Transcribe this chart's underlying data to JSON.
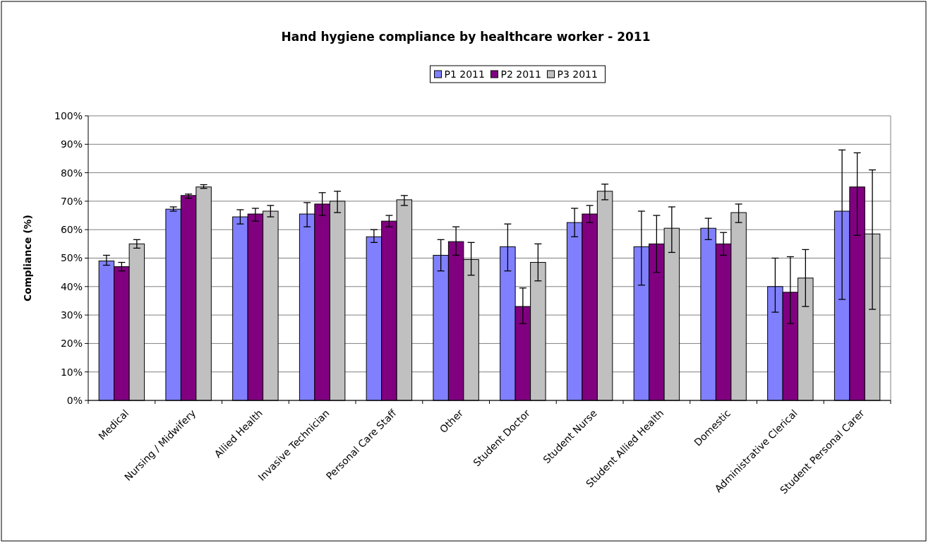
{
  "chart_data": {
    "type": "bar",
    "title": "Hand hygiene compliance by healthcare worker - 2011",
    "ylabel": "Compliance (%)",
    "categories": [
      "Medical",
      "Nursing / Midwifery",
      "Allied Health",
      "Invasive Technician",
      "Personal Care Staff",
      "Other",
      "Student Doctor",
      "Student Nurse",
      "Student Allied Health",
      "Domestic",
      "Administrative Clerical",
      "Student Personal Carer"
    ],
    "series": [
      {
        "name": "P1 2011",
        "color": "#8080ff",
        "values": [
          49,
          67.2,
          64.5,
          65.5,
          57.5,
          51,
          54,
          62.5,
          54,
          60.5,
          40,
          66.5
        ],
        "errors": [
          [
            47.5,
            51
          ],
          [
            66.5,
            68
          ],
          [
            62,
            67
          ],
          [
            61,
            69.5
          ],
          [
            55.5,
            60
          ],
          [
            45.5,
            56.5
          ],
          [
            45.5,
            62
          ],
          [
            57.5,
            67.5
          ],
          [
            40.5,
            66.5
          ],
          [
            56.5,
            64
          ],
          [
            31,
            50
          ],
          [
            35.5,
            88
          ]
        ]
      },
      {
        "name": "P2 2011",
        "color": "#800080",
        "values": [
          47,
          72,
          65.5,
          69,
          63,
          55.8,
          33,
          65.5,
          55,
          55,
          38,
          75
        ],
        "errors": [
          [
            45.5,
            48.5
          ],
          [
            71,
            72.5
          ],
          [
            63,
            67.5
          ],
          [
            65,
            73
          ],
          [
            61,
            65
          ],
          [
            51,
            61
          ],
          [
            27,
            39.5
          ],
          [
            62.5,
            68.5
          ],
          [
            45,
            65
          ],
          [
            51,
            59
          ],
          [
            27,
            50.5
          ],
          [
            58,
            87
          ]
        ]
      },
      {
        "name": "P3 2011",
        "color": "#c0c0c0",
        "values": [
          55,
          75,
          66.5,
          70,
          70.5,
          49.5,
          48.5,
          73.5,
          60.5,
          66,
          43,
          58.5
        ],
        "errors": [
          [
            53.5,
            56.5
          ],
          [
            74.5,
            75.8
          ],
          [
            64.5,
            68.5
          ],
          [
            66,
            73.5
          ],
          [
            68.5,
            72
          ],
          [
            44,
            55.5
          ],
          [
            42,
            55
          ],
          [
            70.5,
            76
          ],
          [
            52,
            68
          ],
          [
            62.5,
            69
          ],
          [
            33,
            53
          ],
          [
            32,
            81
          ]
        ]
      }
    ],
    "ylim": [
      0,
      100
    ],
    "yticks": [
      {
        "value": 0,
        "label": "0%"
      },
      {
        "value": 10,
        "label": "10%"
      },
      {
        "value": 20,
        "label": "20%"
      },
      {
        "value": 30,
        "label": "30%"
      },
      {
        "value": 40,
        "label": "40%"
      },
      {
        "value": 50,
        "label": "50%"
      },
      {
        "value": 60,
        "label": "60%"
      },
      {
        "value": 70,
        "label": "70%"
      },
      {
        "value": 80,
        "label": "80%"
      },
      {
        "value": 90,
        "label": "90%"
      },
      {
        "value": 100,
        "label": "100%"
      }
    ],
    "grid": "y",
    "legend": "top"
  }
}
